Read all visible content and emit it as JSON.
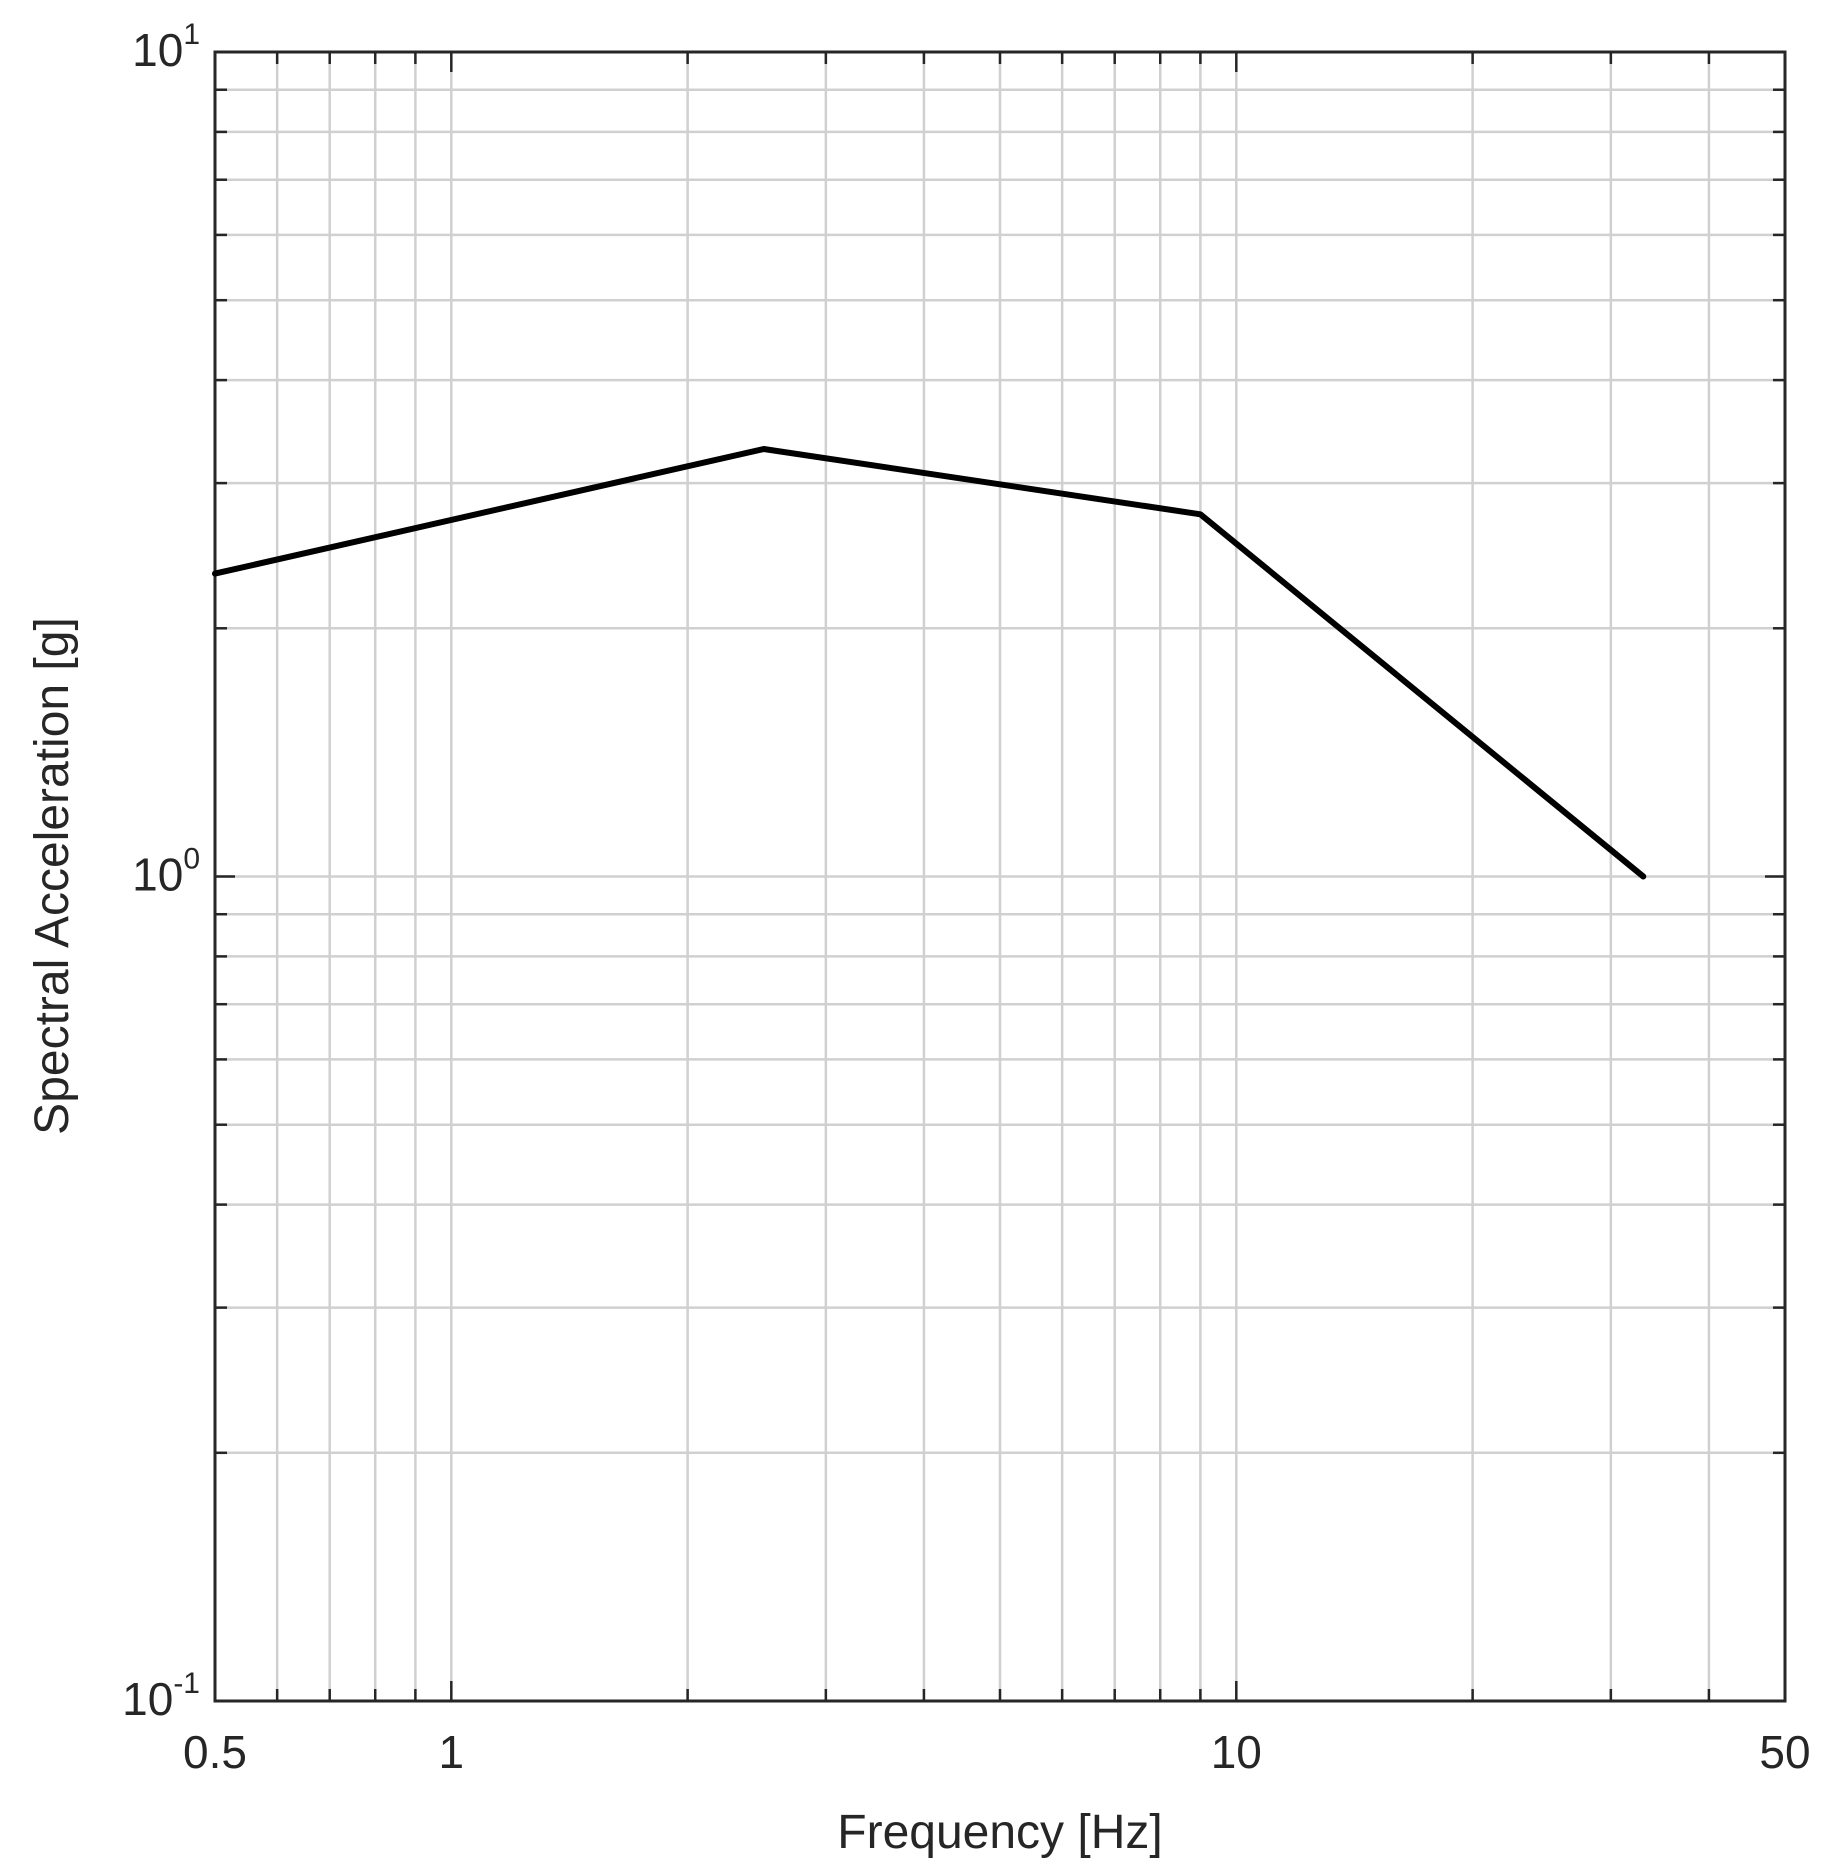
{
  "chart_data": {
    "type": "line",
    "xlabel": "Frequency [Hz]",
    "ylabel": "Spectral Acceleration [g]",
    "xscale": "log",
    "yscale": "log",
    "xlim": [
      0.5,
      50
    ],
    "ylim": [
      0.1,
      10
    ],
    "grid": true,
    "x_ticks": [
      "0.5",
      "1",
      "10",
      "50"
    ],
    "x_tick_values": [
      0.5,
      1,
      10,
      50
    ],
    "y_ticks": [
      {
        "base": "10",
        "exp": "-1",
        "value": 0.1
      },
      {
        "base": "10",
        "exp": "0",
        "value": 1
      },
      {
        "base": "10",
        "exp": "1",
        "value": 10
      }
    ],
    "series": [
      {
        "color": "#000000",
        "x": [
          0.5,
          2.5,
          9,
          33
        ],
        "y": [
          2.33,
          3.3,
          2.75,
          1.0
        ]
      }
    ]
  }
}
